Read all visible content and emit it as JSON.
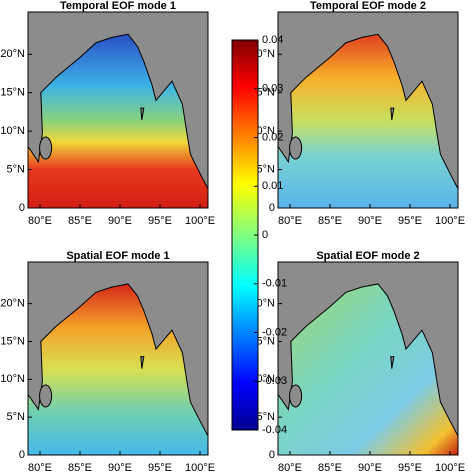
{
  "chart_data": [
    {
      "type": "map",
      "title": "Temporal EOF mode 1",
      "xlim": [
        78.5,
        101
      ],
      "ylim": [
        0,
        25.5
      ],
      "xticks": [
        {
          "value": 80,
          "label": "80°E"
        },
        {
          "value": 85,
          "label": "85°E"
        },
        {
          "value": 90,
          "label": "90°E"
        },
        {
          "value": 95,
          "label": "95°E"
        },
        {
          "value": 100,
          "label": "100°E"
        }
      ],
      "yticks": [
        0,
        {
          "value": 5,
          "label": "5°N"
        },
        {
          "value": 10,
          "label": "10°N"
        },
        {
          "value": 15,
          "label": "15°N"
        },
        {
          "value": 20,
          "label": "20°N"
        }
      ]
    },
    {
      "type": "map",
      "title": "Temporal EOF mode 2",
      "xlim": [
        78.5,
        101
      ],
      "ylim": [
        0,
        25.5
      ],
      "xticks": [
        {
          "value": 80,
          "label": "80°E"
        },
        {
          "value": 85,
          "label": "85°E"
        },
        {
          "value": 90,
          "label": "90°E"
        },
        {
          "value": 95,
          "label": "95°E"
        },
        {
          "value": 100,
          "label": "100°E"
        }
      ],
      "yticks": [
        0,
        {
          "value": 5,
          "label": "5°N"
        },
        {
          "value": 10,
          "label": "10°N"
        },
        {
          "value": 15,
          "label": "15°N"
        },
        {
          "value": 20,
          "label": "20°N"
        }
      ]
    },
    {
      "type": "map",
      "title": "Spatial EOF mode 1",
      "xlim": [
        78.5,
        101
      ],
      "ylim": [
        0,
        25.5
      ],
      "xticks": [
        {
          "value": 80,
          "label": "80°E"
        },
        {
          "value": 85,
          "label": "85°E"
        },
        {
          "value": 90,
          "label": "90°E"
        },
        {
          "value": 95,
          "label": "95°E"
        },
        {
          "value": 100,
          "label": "100°E"
        }
      ],
      "yticks": [
        0,
        {
          "value": 5,
          "label": "5°N"
        },
        {
          "value": 10,
          "label": "10°N"
        },
        {
          "value": 15,
          "label": "15°N"
        },
        {
          "value": 20,
          "label": "20°N"
        }
      ]
    },
    {
      "type": "map",
      "title": "Spatial EOF mode 2",
      "xlim": [
        78.5,
        101
      ],
      "ylim": [
        0,
        25.5
      ],
      "xticks": [
        {
          "value": 80,
          "label": "80°E"
        },
        {
          "value": 85,
          "label": "85°E"
        },
        {
          "value": 90,
          "label": "90°E"
        },
        {
          "value": 95,
          "label": "95°E"
        },
        {
          "value": 100,
          "label": "100°E"
        }
      ],
      "yticks": [
        0,
        {
          "value": 5,
          "label": "5°N"
        },
        {
          "value": 10,
          "label": "10°N"
        },
        {
          "value": 15,
          "label": "15°N"
        },
        {
          "value": 20,
          "label": "20°N"
        }
      ]
    },
    {
      "type": "colorbar",
      "ylim": [
        -0.04,
        0.04
      ],
      "yticks": [
        0.04,
        0.03,
        0.02,
        0.01,
        0,
        -0.01,
        -0.02,
        -0.03,
        -0.04
      ]
    }
  ]
}
